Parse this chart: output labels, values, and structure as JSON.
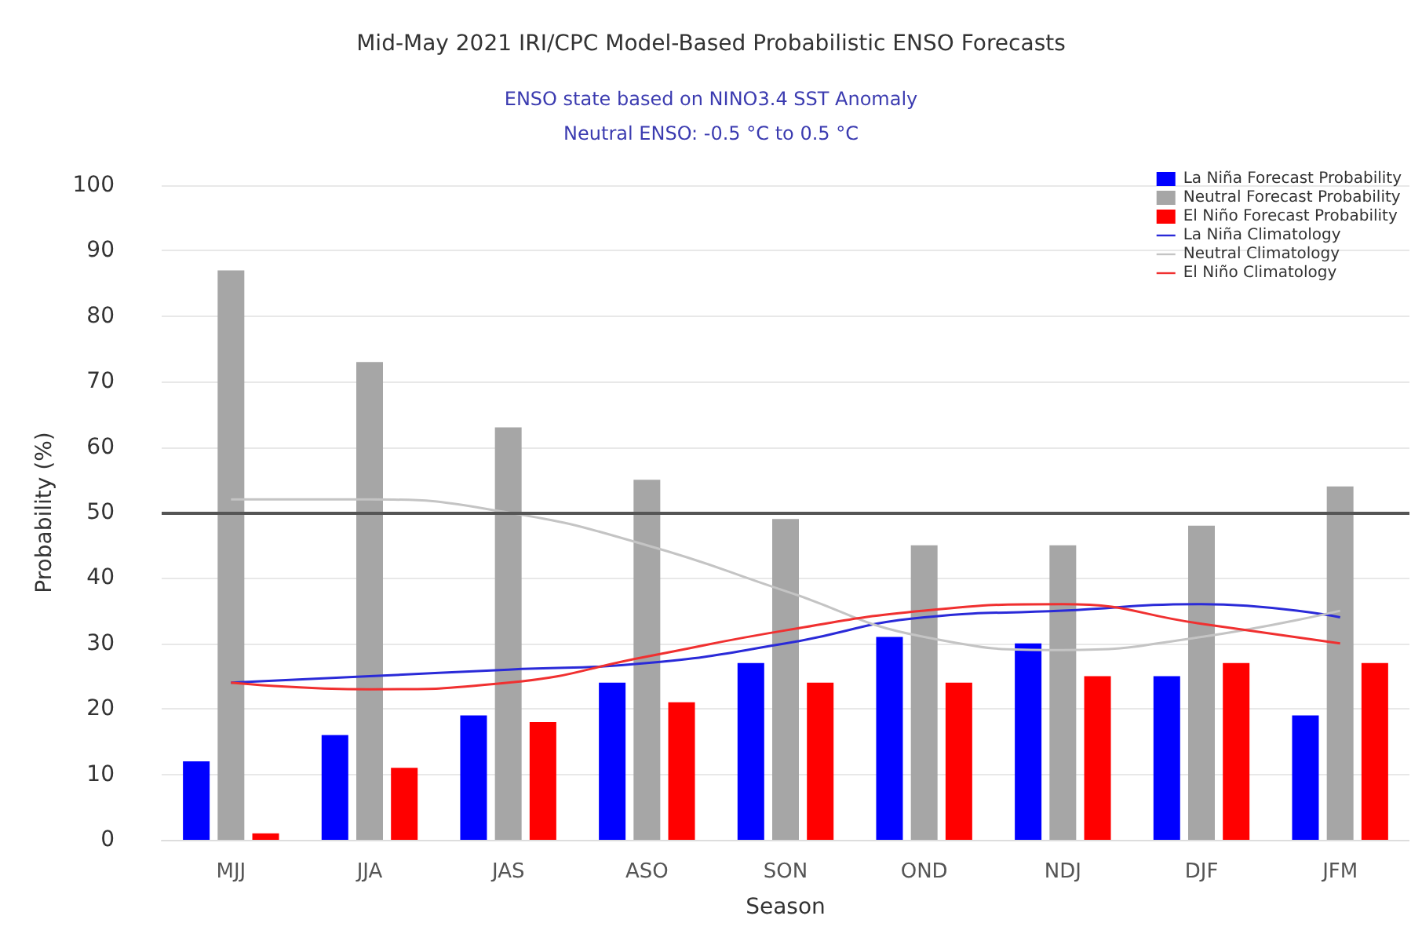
{
  "chart_data": {
    "type": "bar",
    "title": "Mid-May 2021 IRI/CPC Model-Based Probabilistic ENSO Forecasts",
    "subtitle": "ENSO state based on NINO3.4 SST Anomaly\nNeutral ENSO: -0.5 °C to 0.5 °C",
    "xlabel": "Season",
    "ylabel": "Probability (%)",
    "categories": [
      "MJJ",
      "JJA",
      "JAS",
      "ASO",
      "SON",
      "OND",
      "NDJ",
      "DJF",
      "JFM"
    ],
    "series": [
      {
        "name": "La Niña Forecast Probability",
        "color": "#0000ff",
        "values": [
          12,
          16,
          19,
          24,
          27,
          31,
          30,
          25,
          19
        ]
      },
      {
        "name": "Neutral Forecast Probability",
        "color": "#a6a6a6",
        "values": [
          87,
          73,
          63,
          55,
          49,
          45,
          45,
          48,
          54
        ]
      },
      {
        "name": "El Niño Forecast Probability",
        "color": "#ff0000",
        "values": [
          1,
          11,
          18,
          21,
          24,
          24,
          25,
          27,
          27
        ]
      },
      {
        "name": "La Niña Climatology",
        "type": "line",
        "color": "#2a2ad8",
        "values": [
          24,
          25,
          26,
          27,
          30,
          34,
          35,
          36,
          34
        ]
      },
      {
        "name": "Neutral Climatology",
        "type": "line",
        "color": "#c4c4c4",
        "values": [
          52,
          52,
          50,
          45,
          38,
          31,
          29,
          31,
          35
        ]
      },
      {
        "name": "El Niño Climatology",
        "type": "line",
        "color": "#f03030",
        "values": [
          24,
          23,
          24,
          28,
          32,
          35,
          36,
          33,
          30
        ]
      }
    ],
    "ylim": [
      0,
      100
    ],
    "yticks": [
      0,
      10,
      20,
      30,
      40,
      50,
      60,
      70,
      80,
      90,
      100
    ],
    "ref_lines": [
      {
        "axis": "y",
        "value": 50,
        "color": "#555555"
      }
    ],
    "grid": "y",
    "legend": "top right",
    "marker": "none",
    "line_style": "solid"
  }
}
